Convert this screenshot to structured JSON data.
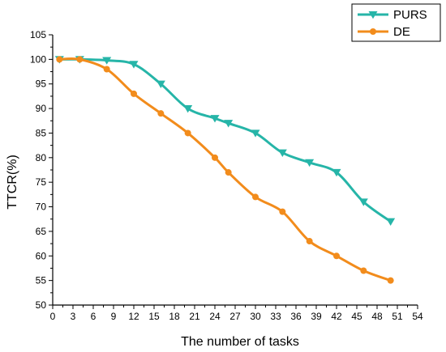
{
  "chart_data": {
    "type": "line",
    "xlabel": "The number of tasks",
    "ylabel": "TTCR(%)",
    "xlim": [
      0,
      54
    ],
    "ylim": [
      50,
      105
    ],
    "xticks": [
      0,
      3,
      6,
      9,
      12,
      15,
      18,
      21,
      24,
      27,
      30,
      33,
      36,
      39,
      42,
      45,
      48,
      51,
      54
    ],
    "yticks": [
      50,
      55,
      60,
      65,
      70,
      75,
      80,
      85,
      90,
      95,
      100,
      105
    ],
    "grid": false,
    "legend_position": "top-right",
    "series": [
      {
        "name": "PURS",
        "color": "#26b5a8",
        "marker": "triangle-down",
        "x": [
          1,
          4,
          8,
          12,
          16,
          20,
          24,
          26,
          30,
          34,
          38,
          42,
          46,
          50
        ],
        "y": [
          100,
          100,
          99.8,
          99,
          95,
          90,
          88,
          87,
          85,
          81,
          79,
          77,
          71,
          67
        ]
      },
      {
        "name": "DE",
        "color": "#f28c1c",
        "marker": "circle",
        "x": [
          1,
          4,
          8,
          12,
          16,
          20,
          24,
          26,
          30,
          34,
          38,
          42,
          46,
          50
        ],
        "y": [
          100,
          100,
          98,
          93,
          89,
          85,
          80,
          77,
          72,
          69,
          63,
          60,
          57,
          55
        ]
      }
    ]
  }
}
